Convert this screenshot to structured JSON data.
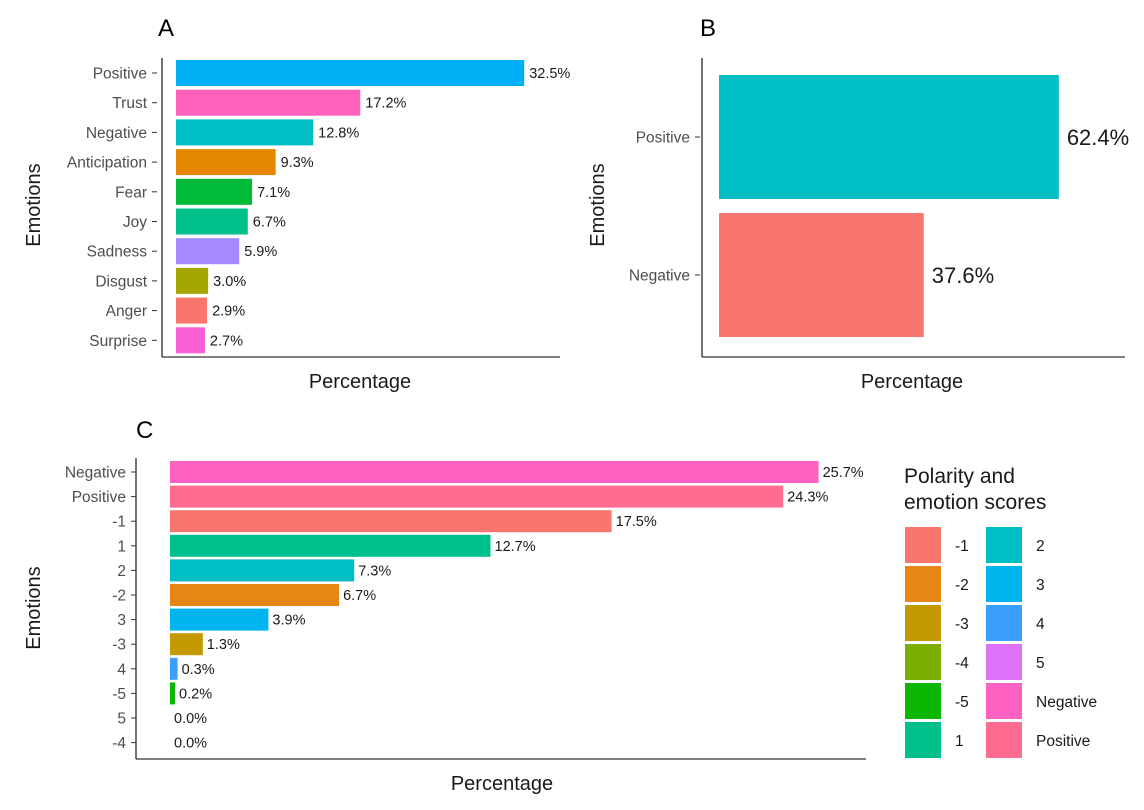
{
  "chart_data": [
    {
      "panel": "A",
      "type": "bar",
      "orientation": "horizontal",
      "xlabel": "Percentage",
      "ylabel": "Emotions",
      "categories": [
        "Positive",
        "Trust",
        "Negative",
        "Anticipation",
        "Fear",
        "Joy",
        "Sadness",
        "Disgust",
        "Anger",
        "Surprise"
      ],
      "values": [
        32.5,
        17.2,
        12.8,
        9.3,
        7.1,
        6.7,
        5.9,
        3.0,
        2.9,
        2.7
      ],
      "labels": [
        "32.5%",
        "17.2%",
        "12.8%",
        "9.3%",
        "7.1%",
        "6.7%",
        "5.9%",
        "3.0%",
        "2.9%",
        "2.7%"
      ],
      "colors": [
        "#00B0F6",
        "#FF62BC",
        "#00BFC4",
        "#E58700",
        "#00BA38",
        "#00C08B",
        "#A58AFF",
        "#A3A500",
        "#F8766D",
        "#FB61D7"
      ],
      "xlim": [
        0,
        35
      ]
    },
    {
      "panel": "B",
      "type": "bar",
      "orientation": "horizontal",
      "xlabel": "Percentage",
      "ylabel": "Emotions",
      "categories": [
        "Positive",
        "Negative"
      ],
      "values": [
        62.4,
        37.6
      ],
      "labels": [
        "62.4%",
        "37.6%"
      ],
      "colors": [
        "#00BFC4",
        "#F8766D"
      ],
      "xlim": [
        0,
        74
      ]
    },
    {
      "panel": "C",
      "type": "bar",
      "orientation": "horizontal",
      "xlabel": "Percentage",
      "ylabel": "Emotions",
      "categories": [
        "Negative",
        "Positive",
        "-1",
        "1",
        "2",
        "-2",
        "3",
        "-3",
        "4",
        "-5",
        "5",
        "-4"
      ],
      "values": [
        25.7,
        24.3,
        17.5,
        12.7,
        7.3,
        6.7,
        3.9,
        1.3,
        0.3,
        0.2,
        0.0,
        0.0
      ],
      "labels": [
        "25.7%",
        "24.3%",
        "17.5%",
        "12.7%",
        "7.3%",
        "6.7%",
        "3.9%",
        "1.3%",
        "0.3%",
        "0.2%",
        "0.0%",
        "0.0%"
      ],
      "colors": [
        "#FF61C3",
        "#FF6C91",
        "#F8766D",
        "#00C08B",
        "#00BFC4",
        "#E68613",
        "#00B4EF",
        "#C49A00",
        "#3A9EFF",
        "#0CB702",
        "#DC71FA",
        "#7CAE00"
      ],
      "xlim": [
        0,
        27.5
      ],
      "legend": {
        "title_line1": "Polarity and",
        "title_line2": "emotion scores",
        "position": "right",
        "items": [
          {
            "label": "-1",
            "color": "#F8766D"
          },
          {
            "label": "-2",
            "color": "#E68613"
          },
          {
            "label": "-3",
            "color": "#C49A00"
          },
          {
            "label": "-4",
            "color": "#7CAE00"
          },
          {
            "label": "-5",
            "color": "#0CB702"
          },
          {
            "label": "1",
            "color": "#00C08B"
          },
          {
            "label": "2",
            "color": "#00BFC4"
          },
          {
            "label": "3",
            "color": "#00B4EF"
          },
          {
            "label": "4",
            "color": "#3A9EFF"
          },
          {
            "label": "5",
            "color": "#DC71FA"
          },
          {
            "label": "Negative",
            "color": "#FF61C3"
          },
          {
            "label": "Positive",
            "color": "#FF6C91"
          }
        ]
      }
    }
  ]
}
